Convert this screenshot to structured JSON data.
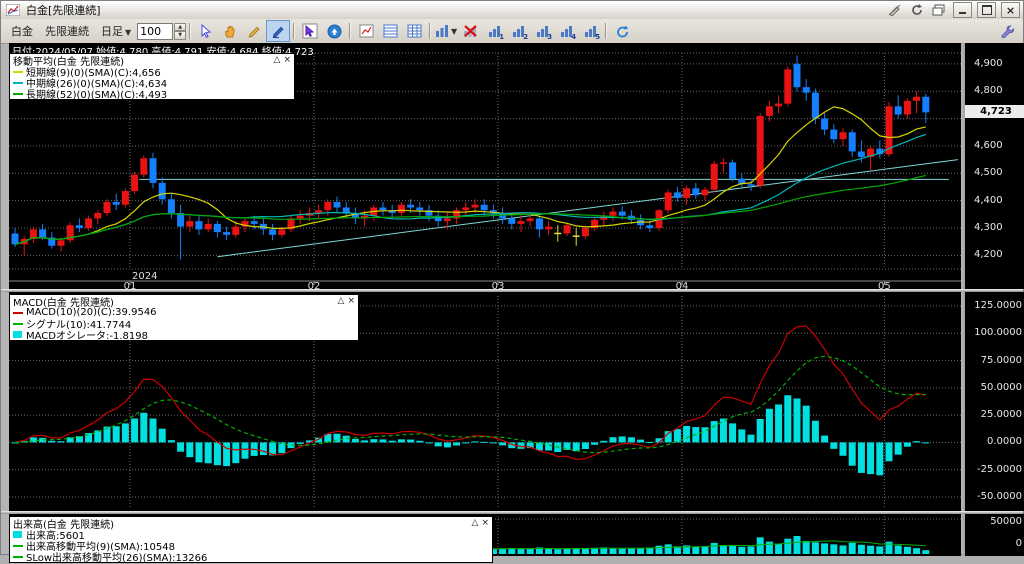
{
  "window": {
    "title": "白金[先限連続]"
  },
  "toolbar": {
    "instrument": "白金",
    "contract": "先限連続",
    "timeframe": "日足",
    "bar_count": "100",
    "panel_numbers": [
      "1",
      "2",
      "3",
      "4",
      "5"
    ]
  },
  "main_chart": {
    "info_bar": "日付:2024/05/07  始値:4,780  高値:4,791  安値:4,684  終値:4,723",
    "legend": {
      "title": "移動平均(白金 先限連続)",
      "collapse": "△",
      "close": "×",
      "items": [
        {
          "label": "短期線(9)(0)(SMA)(C):4,656",
          "color": "#d6d600",
          "chip": "line"
        },
        {
          "label": "中期線(26)(0)(SMA)(C):4,634",
          "color": "#00b8b8",
          "chip": "line"
        },
        {
          "label": "長期線(52)(0)(SMA)(C):4,493",
          "color": "#00a800",
          "chip": "line"
        }
      ]
    },
    "y_axis_labels": [
      "4,900",
      "4,800",
      "4,600",
      "4,500",
      "4,400",
      "4,300",
      "4,200"
    ],
    "current_price": "4,723",
    "x_axis": {
      "year": "2024",
      "months": [
        "01",
        "02",
        "03",
        "04",
        "05"
      ]
    }
  },
  "macd_panel": {
    "legend": {
      "title": "MACD(白金 先限連続)",
      "collapse": "△",
      "close": "×",
      "items": [
        {
          "label": "MACD(10)(20)(C):39.9546",
          "color": "#cc0000",
          "chip": "line"
        },
        {
          "label": "シグナル(10):41.7744",
          "color": "#00b000",
          "chip": "line"
        },
        {
          "label": "MACDオシレータ:-1.8198",
          "color": "#00e0e0",
          "chip": "block"
        }
      ]
    },
    "y_axis_labels": [
      "125.0000",
      "100.0000",
      "75.0000",
      "50.0000",
      "25.0000",
      "0.0000",
      "-25.0000",
      "-50.0000"
    ]
  },
  "volume_panel": {
    "legend": {
      "title": "出来高(白金 先限連続)",
      "collapse": "△",
      "close": "×",
      "items": [
        {
          "label": "出来高:5601",
          "color": "#00e0e0",
          "chip": "block"
        },
        {
          "label": "出来高移動平均(9)(SMA):10548",
          "color": "#00b000",
          "chip": "line"
        },
        {
          "label": "SLow出来高移動平均(26)(SMA):13266",
          "color": "#00b000",
          "chip": "line"
        }
      ]
    },
    "y_axis_labels": [
      "50000",
      "0"
    ]
  },
  "chart_data": {
    "type": "candlestick+macd+volume",
    "title": "白金 先限連続 日足 100本",
    "price_axis": {
      "min": 4150,
      "max": 4940,
      "ticks": [
        4900,
        4800,
        4700,
        4600,
        4500,
        4400,
        4300,
        4200
      ]
    },
    "price_label_ticks": [
      4900,
      4800,
      4600,
      4500,
      4400,
      4300,
      4200
    ],
    "current_price_value": 4723,
    "macd_axis": {
      "min": -57,
      "max": 130,
      "ticks": [
        125,
        100,
        75,
        50,
        25,
        0,
        -25,
        -50
      ]
    },
    "volume_axis": {
      "min": 0,
      "max": 50000
    },
    "month_gridlines": [
      {
        "bar": 13,
        "label": "01"
      },
      {
        "bar": 33,
        "label": "02"
      },
      {
        "bar": 53,
        "label": "03"
      },
      {
        "bar": 73,
        "label": "04"
      },
      {
        "bar": 95,
        "label": "05"
      }
    ],
    "year_label": "2024",
    "moving_averages": [
      {
        "period": 9,
        "color": "#d6d600"
      },
      {
        "period": 26,
        "color": "#00b8b8"
      },
      {
        "period": 52,
        "color": "#00a800"
      }
    ],
    "macd_params": {
      "fast": 10,
      "slow": 20,
      "signal": 10
    },
    "trendlines": [
      {
        "b1": 13.5,
        "v1": 4478,
        "b2": 101.5,
        "v2": 4478,
        "color": "#7fd8d8"
      },
      {
        "b1": 22,
        "v1": 4195,
        "b2": 102.5,
        "v2": 4550,
        "color": "#7fd8d8"
      }
    ],
    "colors": {
      "up": "#e81414",
      "down": "#1580ff",
      "doji": "#e0e040",
      "hist": "#00e0e0",
      "macd_line": "#cc0000",
      "signal_line": "#00b000",
      "volume": "#00e0e0",
      "volume_ma": "#00b000",
      "grid": "#6a6a6a"
    },
    "candles_ohlc": [
      [
        4280,
        4300,
        4230,
        4240
      ],
      [
        4240,
        4270,
        4200,
        4260
      ],
      [
        4260,
        4305,
        4245,
        4295
      ],
      [
        4295,
        4315,
        4255,
        4265
      ],
      [
        4265,
        4285,
        4225,
        4235
      ],
      [
        4235,
        4265,
        4215,
        4255
      ],
      [
        4255,
        4320,
        4245,
        4310
      ],
      [
        4310,
        4335,
        4285,
        4300
      ],
      [
        4300,
        4345,
        4290,
        4335
      ],
      [
        4335,
        4365,
        4315,
        4355
      ],
      [
        4355,
        4405,
        4345,
        4395
      ],
      [
        4395,
        4425,
        4365,
        4385
      ],
      [
        4385,
        4445,
        4375,
        4435
      ],
      [
        4435,
        4505,
        4425,
        4495
      ],
      [
        4495,
        4565,
        4485,
        4555
      ],
      [
        4555,
        4575,
        4445,
        4465
      ],
      [
        4465,
        4485,
        4385,
        4405
      ],
      [
        4405,
        4425,
        4335,
        4355
      ],
      [
        4355,
        4385,
        4185,
        4305
      ],
      [
        4305,
        4345,
        4285,
        4325
      ],
      [
        4325,
        4345,
        4275,
        4295
      ],
      [
        4295,
        4335,
        4285,
        4315
      ],
      [
        4315,
        4325,
        4265,
        4285
      ],
      [
        4285,
        4305,
        4255,
        4275
      ],
      [
        4275,
        4325,
        4265,
        4305
      ],
      [
        4305,
        4335,
        4285,
        4325
      ],
      [
        4325,
        4345,
        4295,
        4315
      ],
      [
        4315,
        4335,
        4275,
        4295
      ],
      [
        4295,
        4315,
        4255,
        4275
      ],
      [
        4275,
        4305,
        4265,
        4295
      ],
      [
        4295,
        4345,
        4285,
        4335
      ],
      [
        4335,
        4365,
        4315,
        4345
      ],
      [
        4345,
        4375,
        4325,
        4355
      ],
      [
        4355,
        4385,
        4335,
        4365
      ],
      [
        4365,
        4405,
        4345,
        4395
      ],
      [
        4395,
        4415,
        4355,
        4375
      ],
      [
        4375,
        4395,
        4335,
        4355
      ],
      [
        4355,
        4375,
        4315,
        4335
      ],
      [
        4335,
        4365,
        4305,
        4345
      ],
      [
        4345,
        4385,
        4325,
        4375
      ],
      [
        4375,
        4395,
        4345,
        4365
      ],
      [
        4365,
        4385,
        4335,
        4355
      ],
      [
        4355,
        4395,
        4345,
        4385
      ],
      [
        4385,
        4405,
        4355,
        4375
      ],
      [
        4375,
        4395,
        4345,
        4365
      ],
      [
        4365,
        4385,
        4325,
        4345
      ],
      [
        4345,
        4365,
        4305,
        4325
      ],
      [
        4325,
        4355,
        4295,
        4335
      ],
      [
        4335,
        4375,
        4315,
        4365
      ],
      [
        4365,
        4395,
        4345,
        4375
      ],
      [
        4375,
        4405,
        4355,
        4385
      ],
      [
        4385,
        4405,
        4345,
        4365
      ],
      [
        4365,
        4385,
        4335,
        4355
      ],
      [
        4355,
        4375,
        4315,
        4335
      ],
      [
        4335,
        4355,
        4295,
        4315
      ],
      [
        4315,
        4345,
        4285,
        4325
      ],
      [
        4325,
        4355,
        4305,
        4335
      ],
      [
        4335,
        4345,
        4265,
        4295
      ],
      [
        4295,
        4325,
        4275,
        4305
      ],
      [
        4280,
        4310,
        4250,
        4280
      ],
      [
        4280,
        4320,
        4270,
        4310
      ],
      [
        4270,
        4300,
        4235,
        4270
      ],
      [
        4270,
        4310,
        4260,
        4300
      ],
      [
        4300,
        4340,
        4290,
        4330
      ],
      [
        4330,
        4360,
        4310,
        4345
      ],
      [
        4345,
        4375,
        4325,
        4360
      ],
      [
        4360,
        4380,
        4330,
        4345
      ],
      [
        4345,
        4365,
        4315,
        4330
      ],
      [
        4330,
        4350,
        4295,
        4310
      ],
      [
        4310,
        4330,
        4285,
        4300
      ],
      [
        4300,
        4370,
        4290,
        4365
      ],
      [
        4365,
        4440,
        4355,
        4430
      ],
      [
        4430,
        4450,
        4395,
        4410
      ],
      [
        4410,
        4455,
        4385,
        4445
      ],
      [
        4445,
        4465,
        4405,
        4420
      ],
      [
        4420,
        4450,
        4400,
        4440
      ],
      [
        4440,
        4545,
        4430,
        4535
      ],
      [
        4535,
        4555,
        4500,
        4540
      ],
      [
        4540,
        4550,
        4470,
        4480
      ],
      [
        4480,
        4500,
        4450,
        4460
      ],
      [
        4460,
        4480,
        4435,
        4455
      ],
      [
        4455,
        4720,
        4445,
        4710
      ],
      [
        4710,
        4765,
        4690,
        4745
      ],
      [
        4745,
        4785,
        4720,
        4755
      ],
      [
        4755,
        4890,
        4745,
        4880
      ],
      [
        4900,
        4930,
        4800,
        4815
      ],
      [
        4815,
        4845,
        4765,
        4795
      ],
      [
        4795,
        4810,
        4680,
        4700
      ],
      [
        4700,
        4720,
        4640,
        4660
      ],
      [
        4660,
        4680,
        4610,
        4625
      ],
      [
        4625,
        4665,
        4600,
        4650
      ],
      [
        4650,
        4660,
        4560,
        4580
      ],
      [
        4580,
        4620,
        4540,
        4560
      ],
      [
        4560,
        4600,
        4510,
        4590
      ],
      [
        4590,
        4620,
        4555,
        4570
      ],
      [
        4570,
        4760,
        4560,
        4745
      ],
      [
        4745,
        4785,
        4700,
        4715
      ],
      [
        4715,
        4775,
        4700,
        4765
      ],
      [
        4765,
        4800,
        4720,
        4780
      ],
      [
        4780,
        4791,
        4684,
        4723
      ]
    ],
    "volumes": [
      7200,
      8400,
      6600,
      9100,
      7600,
      6900,
      9600,
      8100,
      7300,
      8900,
      10500,
      9300,
      11200,
      14500,
      16200,
      15100,
      12600,
      11200,
      17800,
      9600,
      8300,
      7900,
      8600,
      7300,
      6900,
      7600,
      8300,
      7100,
      6600,
      7900,
      9100,
      8600,
      8100,
      8900,
      9600,
      8300,
      7600,
      7100,
      7900,
      8600,
      7300,
      6900,
      7600,
      8100,
      7300,
      6600,
      7100,
      7900,
      8600,
      8100,
      8900,
      7600,
      7100,
      7900,
      8600,
      7300,
      7900,
      9600,
      8300,
      7100,
      7600,
      8900,
      8100,
      9100,
      9600,
      8600,
      7900,
      8300,
      8900,
      9600,
      12200,
      14200,
      11200,
      12600,
      10600,
      11600,
      16200,
      13200,
      12200,
      10600,
      11200,
      24500,
      18200,
      15200,
      22500,
      26500,
      19200,
      17200,
      15600,
      14200,
      12600,
      16600,
      13600,
      12200,
      11200,
      18200,
      12600,
      10600,
      8600,
      5601
    ]
  }
}
